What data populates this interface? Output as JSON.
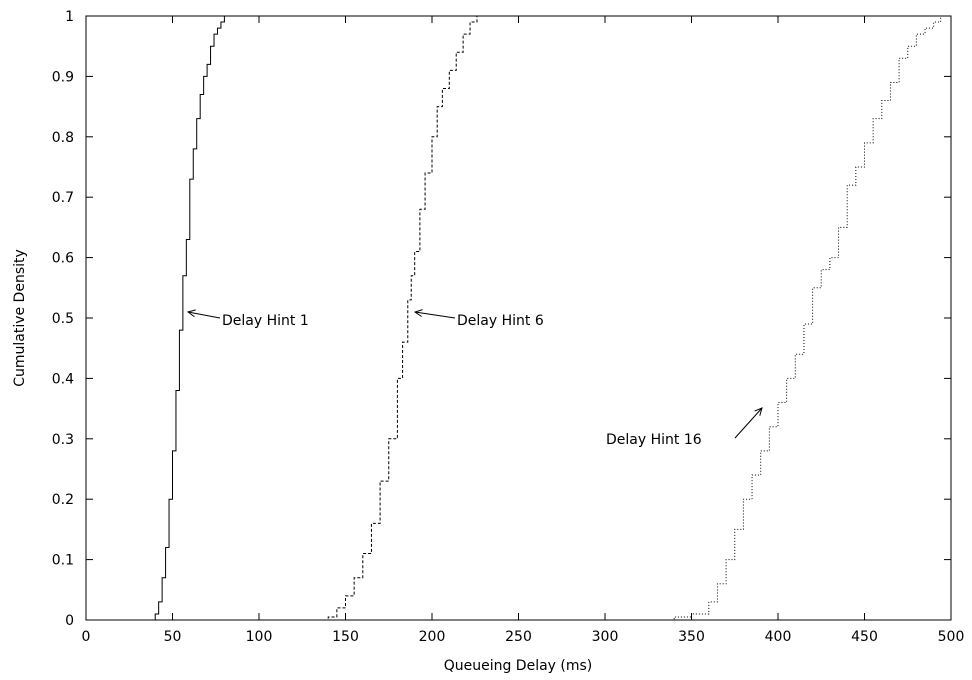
{
  "chart_data": {
    "type": "line",
    "xlabel": "Queueing Delay (ms)",
    "ylabel": "Cumulative Density",
    "xlim": [
      0,
      500
    ],
    "ylim": [
      0,
      1
    ],
    "xticks": [
      0,
      50,
      100,
      150,
      200,
      250,
      300,
      350,
      400,
      450,
      500
    ],
    "yticks": [
      0,
      0.1,
      0.2,
      0.3,
      0.4,
      0.5,
      0.6,
      0.7,
      0.8,
      0.9,
      1
    ],
    "xtick_labels": [
      "0",
      "50",
      "100",
      "150",
      "200",
      "250",
      "300",
      "350",
      "400",
      "450",
      "500"
    ],
    "ytick_labels": [
      "0",
      "0.1",
      "0.2",
      "0.3",
      "0.4",
      "0.5",
      "0.6",
      "0.7",
      "0.8",
      "0.9",
      "1"
    ],
    "grid": false,
    "series": [
      {
        "name": "Delay Hint 1",
        "style": "solid",
        "x": [
          38,
          40,
          42,
          44,
          46,
          48,
          50,
          52,
          54,
          56,
          58,
          60,
          62,
          64,
          66,
          68,
          70,
          72,
          74,
          76,
          78,
          80,
          83,
          87
        ],
        "y": [
          0.0,
          0.01,
          0.03,
          0.07,
          0.12,
          0.2,
          0.28,
          0.38,
          0.48,
          0.57,
          0.63,
          0.73,
          0.78,
          0.83,
          0.87,
          0.9,
          0.92,
          0.95,
          0.97,
          0.98,
          0.99,
          1.0,
          1.0,
          1.0
        ]
      },
      {
        "name": "Delay Hint 6",
        "style": "dashed",
        "x": [
          135,
          140,
          145,
          150,
          155,
          160,
          165,
          170,
          175,
          180,
          183,
          186,
          188,
          190,
          193,
          196,
          200,
          203,
          206,
          210,
          214,
          218,
          222,
          226,
          229
        ],
        "y": [
          0.0,
          0.005,
          0.02,
          0.04,
          0.07,
          0.11,
          0.16,
          0.23,
          0.3,
          0.4,
          0.46,
          0.53,
          0.57,
          0.61,
          0.68,
          0.74,
          0.8,
          0.85,
          0.88,
          0.91,
          0.94,
          0.97,
          0.99,
          1.0,
          1.0
        ]
      },
      {
        "name": "Delay Hint 16",
        "style": "dotted",
        "x": [
          330,
          340,
          350,
          360,
          365,
          370,
          375,
          380,
          385,
          390,
          395,
          400,
          405,
          410,
          415,
          420,
          425,
          430,
          435,
          440,
          445,
          450,
          455,
          460,
          465,
          470,
          475,
          480,
          485,
          490,
          494
        ],
        "y": [
          0.0,
          0.005,
          0.01,
          0.03,
          0.06,
          0.1,
          0.15,
          0.2,
          0.24,
          0.28,
          0.32,
          0.36,
          0.4,
          0.44,
          0.49,
          0.55,
          0.58,
          0.6,
          0.65,
          0.72,
          0.75,
          0.79,
          0.83,
          0.86,
          0.89,
          0.93,
          0.95,
          0.97,
          0.98,
          0.99,
          1.0
        ]
      }
    ],
    "annotations": [
      {
        "text": "Delay Hint 1",
        "series": 0
      },
      {
        "text": "Delay Hint 6",
        "series": 1
      },
      {
        "text": "Delay Hint 16",
        "series": 2
      }
    ]
  }
}
